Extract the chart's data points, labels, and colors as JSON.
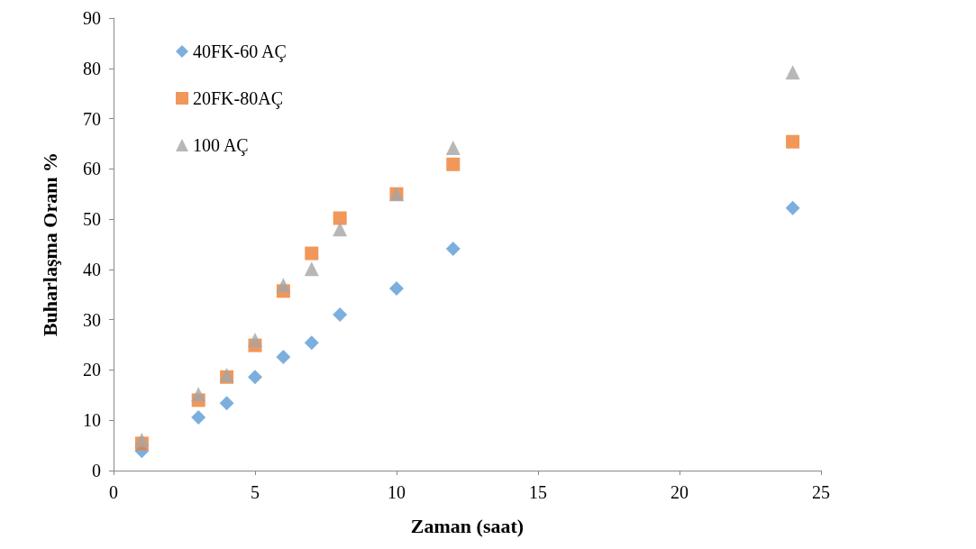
{
  "chart_data": {
    "type": "scatter",
    "xlabel": "Zaman (saat)",
    "ylabel": "Buharlaşma Oranı %",
    "xlim": [
      0,
      25
    ],
    "xticks": [
      0,
      5,
      10,
      15,
      20,
      25
    ],
    "ylim": [
      0,
      90
    ],
    "yticks": [
      0,
      10,
      20,
      30,
      40,
      50,
      60,
      70,
      80,
      90
    ],
    "grid": false,
    "legend": "top left",
    "x": [
      1,
      3,
      4,
      5,
      6,
      7,
      8,
      10,
      12,
      24
    ],
    "series": [
      {
        "name": "40FK-60 AÇ",
        "color": "#5b9bd5",
        "marker": "diamond",
        "values": [
          3.9,
          10.6,
          13.4,
          18.6,
          22.6,
          25.4,
          31.0,
          36.2,
          44.1,
          52.2
        ]
      },
      {
        "name": "20FK-80AÇ",
        "color": "#ed7d31",
        "marker": "square",
        "values": [
          5.4,
          14.0,
          18.6,
          24.9,
          35.7,
          43.2,
          50.2,
          55.0,
          60.9,
          65.4
        ]
      },
      {
        "name": "100 AÇ",
        "color": "#a5a5a5",
        "marker": "triangle",
        "values": [
          6.1,
          15.2,
          19.0,
          26.0,
          36.9,
          40.1,
          48.0,
          55.0,
          64.2,
          79.2
        ]
      }
    ]
  }
}
